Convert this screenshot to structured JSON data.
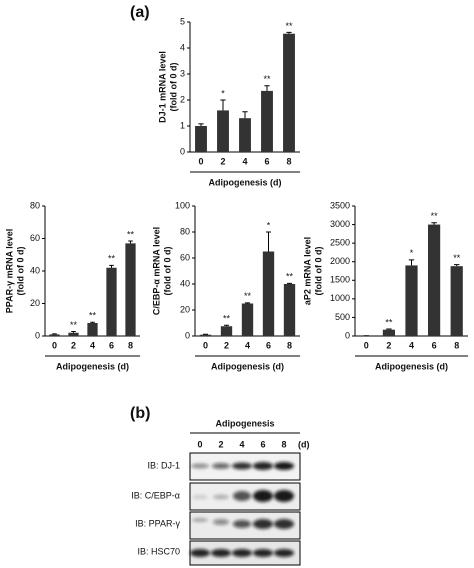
{
  "panel_labels": [
    "(a)",
    "(b)"
  ],
  "chart_data": [
    {
      "type": "bar",
      "ylabel": [
        "DJ-1 mRNA level",
        "(fold of 0 d)"
      ],
      "xlabel": "Adipogenesis (d)",
      "categories": [
        "0",
        "2",
        "4",
        "6",
        "8"
      ],
      "values": [
        1.0,
        1.6,
        1.3,
        2.35,
        4.55
      ],
      "errors": [
        0.08,
        0.4,
        0.25,
        0.2,
        0.05
      ],
      "annotations": [
        null,
        "*",
        null,
        "**",
        "**"
      ],
      "color": "#333333",
      "ylim": [
        0,
        5
      ],
      "yticks": [
        0,
        1,
        2,
        3,
        4,
        5
      ]
    },
    {
      "type": "bar",
      "ylabel": [
        "PPAR-γ mRNA level",
        "(fold of 0 d)"
      ],
      "xlabel": "Adipogenesis  (d)",
      "categories": [
        "0",
        "2",
        "4",
        "6",
        "8"
      ],
      "values": [
        1,
        2,
        8,
        42,
        57
      ],
      "errors": [
        0.3,
        0.8,
        0.5,
        1.5,
        1.5
      ],
      "annotations": [
        null,
        "**",
        "**",
        "**",
        "**"
      ],
      "color": "#333333",
      "ylim": [
        0,
        80
      ],
      "yticks": [
        0,
        20,
        40,
        60,
        80
      ]
    },
    {
      "type": "bar",
      "ylabel": [
        "C/EBP-α mRNA level",
        "(fold of 0 d)"
      ],
      "xlabel": "Adipogenesis  (d)",
      "categories": [
        "0",
        "2",
        "4",
        "6",
        "8"
      ],
      "values": [
        1,
        7.5,
        25,
        65,
        40
      ],
      "errors": [
        0.3,
        0.8,
        0.5,
        15,
        0.5
      ],
      "annotations": [
        null,
        "**",
        "**",
        "*",
        "**"
      ],
      "color": "#333333",
      "ylim": [
        0,
        100
      ],
      "yticks": [
        0,
        20,
        40,
        60,
        80,
        100
      ]
    },
    {
      "type": "bar",
      "ylabel": [
        "aP2 mRNA level",
        "(fold of 0 d)"
      ],
      "xlabel": "Adipogenesis  (d)",
      "categories": [
        "0",
        "2",
        "4",
        "6",
        "8"
      ],
      "values": [
        1,
        170,
        1900,
        3000,
        1880
      ],
      "errors": [
        5,
        20,
        150,
        50,
        40
      ],
      "annotations": [
        null,
        "**",
        "*",
        "**",
        "**"
      ],
      "color": "#333333",
      "ylim": [
        0,
        3500
      ],
      "yticks": [
        0,
        500,
        1000,
        1500,
        2000,
        2500,
        3000,
        3500
      ]
    }
  ],
  "blot": {
    "title": "Adipogenesis",
    "lanes": [
      "0",
      "2",
      "4",
      "6",
      "8"
    ],
    "unit": "(d)",
    "rows": [
      "IB: DJ-1",
      "IB: C/EBP-α",
      "IB: PPAR-γ",
      "IB: HSC70"
    ]
  }
}
